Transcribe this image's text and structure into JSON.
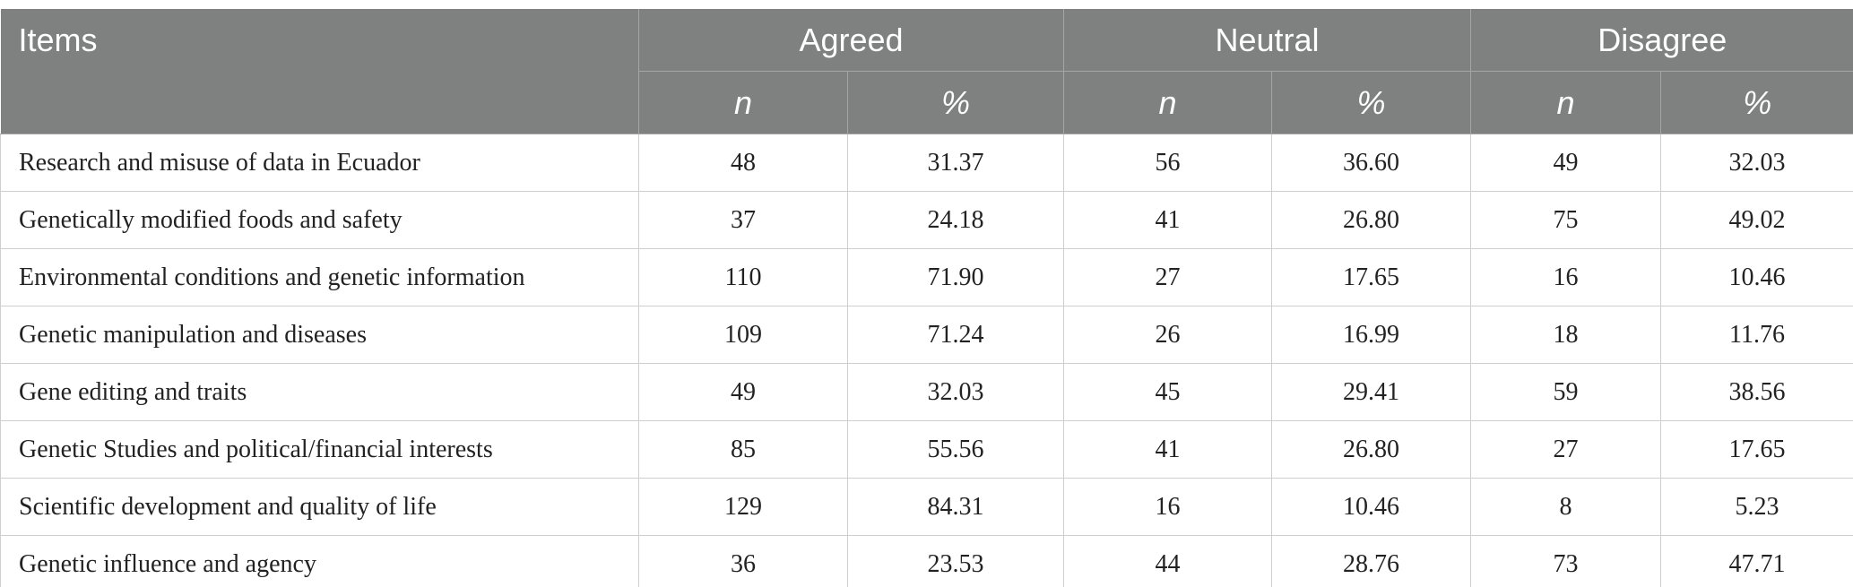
{
  "table": {
    "header": {
      "items": "Items",
      "groups": [
        "Agreed",
        "Neutral",
        "Disagree"
      ],
      "subheaders": [
        "n",
        "%",
        "n",
        "%",
        "n",
        "%"
      ]
    },
    "rows": [
      [
        "Research and misuse of data in Ecuador",
        "48",
        "31.37",
        "56",
        "36.60",
        "49",
        "32.03"
      ],
      [
        "Genetically modified foods and safety",
        "37",
        "24.18",
        "41",
        "26.80",
        "75",
        "49.02"
      ],
      [
        "Environmental conditions and genetic information",
        "110",
        "71.90",
        "27",
        "17.65",
        "16",
        "10.46"
      ],
      [
        "Genetic manipulation and diseases",
        "109",
        "71.24",
        "26",
        "16.99",
        "18",
        "11.76"
      ],
      [
        "Gene editing and traits",
        "49",
        "32.03",
        "45",
        "29.41",
        "59",
        "38.56"
      ],
      [
        "Genetic Studies and political/financial interests",
        "85",
        "55.56",
        "41",
        "26.80",
        "27",
        "17.65"
      ],
      [
        "Scientific development and quality of life",
        "129",
        "84.31",
        "16",
        "10.46",
        "8",
        "5.23"
      ],
      [
        "Genetic influence and agency",
        "36",
        "23.53",
        "44",
        "28.76",
        "73",
        "47.71"
      ]
    ]
  }
}
